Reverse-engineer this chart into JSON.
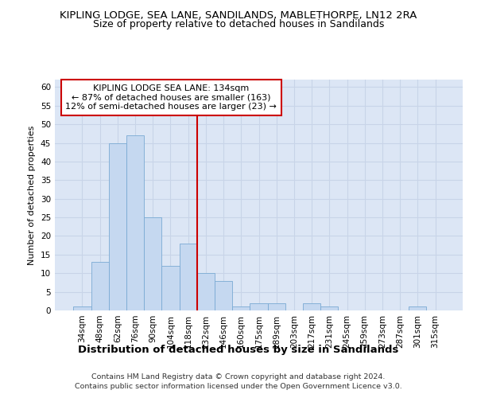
{
  "title": "KIPLING LODGE, SEA LANE, SANDILANDS, MABLETHORPE, LN12 2RA",
  "subtitle": "Size of property relative to detached houses in Sandilands",
  "xlabel": "Distribution of detached houses by size in Sandilands",
  "ylabel": "Number of detached properties",
  "categories": [
    "34sqm",
    "48sqm",
    "62sqm",
    "76sqm",
    "90sqm",
    "104sqm",
    "118sqm",
    "132sqm",
    "146sqm",
    "160sqm",
    "175sqm",
    "189sqm",
    "203sqm",
    "217sqm",
    "231sqm",
    "245sqm",
    "259sqm",
    "273sqm",
    "287sqm",
    "301sqm",
    "315sqm"
  ],
  "values": [
    1,
    13,
    45,
    47,
    25,
    12,
    18,
    10,
    8,
    1,
    2,
    2,
    0,
    2,
    1,
    0,
    0,
    0,
    0,
    1,
    0
  ],
  "bar_color": "#c5d8f0",
  "bar_edgecolor": "#7aaad4",
  "bar_width": 1.0,
  "vline_color": "#cc0000",
  "annotation_text": "KIPLING LODGE SEA LANE: 134sqm\n← 87% of detached houses are smaller (163)\n12% of semi-detached houses are larger (23) →",
  "annotation_box_edgecolor": "#cc0000",
  "annotation_box_facecolor": "#ffffff",
  "ylim": [
    0,
    62
  ],
  "yticks": [
    0,
    5,
    10,
    15,
    20,
    25,
    30,
    35,
    40,
    45,
    50,
    55,
    60
  ],
  "grid_color": "#c8d4e8",
  "background_color": "#dce6f5",
  "title_fontsize": 9.5,
  "subtitle_fontsize": 9,
  "xlabel_fontsize": 9.5,
  "ylabel_fontsize": 8,
  "tick_fontsize": 7.5,
  "annotation_fontsize": 8,
  "footer_fontsize": 6.8,
  "footer1": "Contains HM Land Registry data © Crown copyright and database right 2024.",
  "footer2": "Contains public sector information licensed under the Open Government Licence v3.0."
}
